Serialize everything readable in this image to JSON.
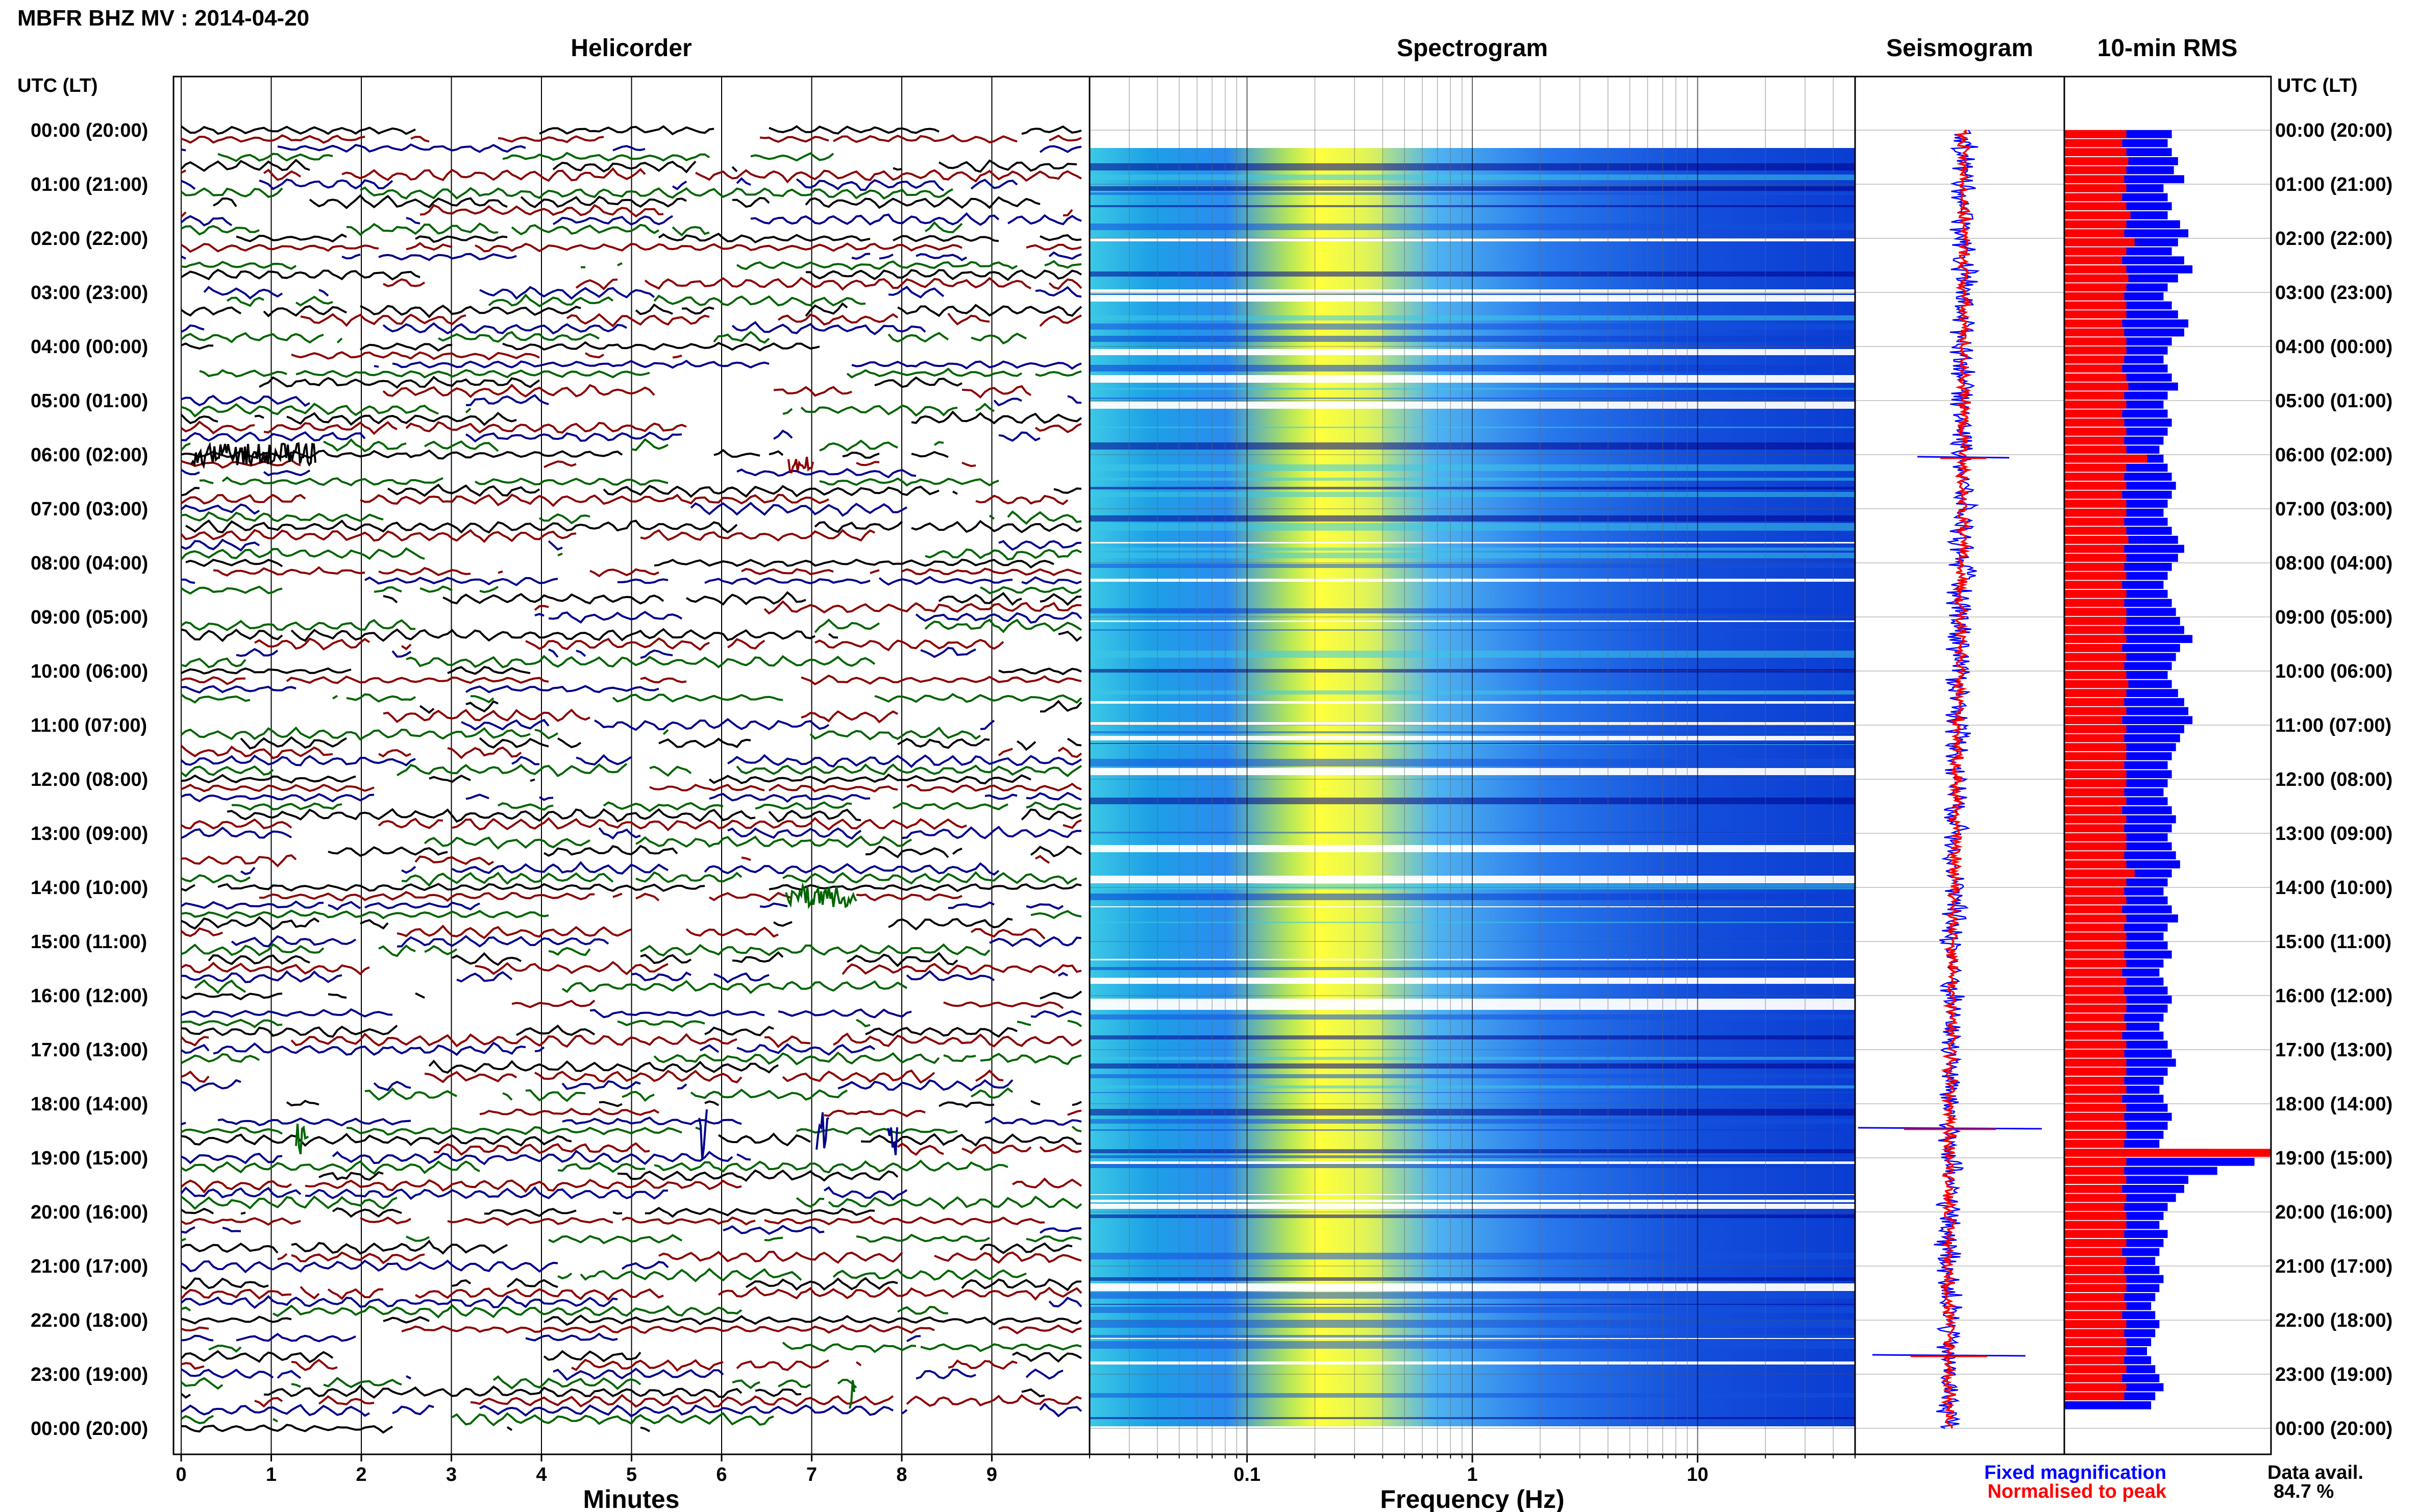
{
  "header": {
    "title": "MBFR BHZ MV : 2014-04-20",
    "utc_lt_label": "UTC (LT)"
  },
  "panels": {
    "helicorder": "Helicorder",
    "spectrogram": "Spectrogram",
    "seismogram": "Seismogram",
    "rms": "10-min RMS"
  },
  "legend": {
    "fixed": "Fixed magnification",
    "normalised": "Normalised to peak",
    "fixed_color": "#0000ff",
    "normalised_color": "#ff0000",
    "availability_label": "Data avail.",
    "availability_value": "84.7 %"
  },
  "colors": {
    "trace_cycle": [
      "#000000",
      "#8b0000",
      "#00008b",
      "#006400"
    ],
    "spectrogram_low": "#00008b",
    "spectrogram_high": "#ffff00"
  },
  "chart_data": [
    {
      "type": "line",
      "panel": "Helicorder",
      "xlabel": "Minutes",
      "xlim": [
        0,
        10
      ],
      "x_ticks": [
        0,
        1,
        2,
        3,
        4,
        5,
        6,
        7,
        8,
        9
      ],
      "rows_per_hour": 6,
      "y_hours_utc": [
        "00:00",
        "01:00",
        "02:00",
        "03:00",
        "04:00",
        "05:00",
        "06:00",
        "07:00",
        "08:00",
        "09:00",
        "10:00",
        "11:00",
        "12:00",
        "13:00",
        "14:00",
        "15:00",
        "16:00",
        "17:00",
        "18:00",
        "19:00",
        "20:00",
        "21:00",
        "22:00",
        "23:00",
        "00:00"
      ],
      "y_hours_lt": [
        "(20:00)",
        "(21:00)",
        "(22:00)",
        "(23:00)",
        "(00:00)",
        "(01:00)",
        "(02:00)",
        "(03:00)",
        "(04:00)",
        "(05:00)",
        "(06:00)",
        "(07:00)",
        "(08:00)",
        "(09:00)",
        "(10:00)",
        "(11:00)",
        "(12:00)",
        "(13:00)",
        "(14:00)",
        "(15:00)",
        "(16:00)",
        "(17:00)",
        "(18:00)",
        "(19:00)",
        "(20:00)"
      ]
    },
    {
      "type": "heatmap",
      "panel": "Spectrogram",
      "xlabel": "Frequency (Hz)",
      "x_scale": "log",
      "xlim": [
        0.02,
        50
      ],
      "x_ticks": [
        0.1,
        1,
        10
      ],
      "x_tick_labels": [
        "0.1",
        "1",
        "10"
      ],
      "peak_band_hz": [
        0.2,
        0.4
      ]
    },
    {
      "type": "line",
      "panel": "Seismogram",
      "series": [
        {
          "name": "Fixed magnification",
          "color": "#0000ff"
        },
        {
          "name": "Normalised to peak",
          "color": "#ff0000"
        }
      ]
    },
    {
      "type": "bar",
      "panel": "10-min RMS",
      "orientation": "horizontal",
      "series": [
        {
          "name": "Fixed magnification",
          "color": "#0000ff",
          "values": [
            0.52,
            0.5,
            0.52,
            0.55,
            0.53,
            0.58,
            0.48,
            0.5,
            0.52,
            0.5,
            0.56,
            0.6,
            0.55,
            0.52,
            0.58,
            0.62,
            0.55,
            0.5,
            0.48,
            0.52,
            0.55,
            0.6,
            0.58,
            0.52,
            0.5,
            0.48,
            0.5,
            0.52,
            0.55,
            0.5,
            0.48,
            0.5,
            0.52,
            0.5,
            0.48,
            0.46,
            0.48,
            0.5,
            0.52,
            0.54,
            0.52,
            0.5,
            0.48,
            0.5,
            0.52,
            0.55,
            0.58,
            0.55,
            0.52,
            0.5,
            0.48,
            0.5,
            0.52,
            0.54,
            0.56,
            0.58,
            0.62,
            0.56,
            0.54,
            0.52,
            0.5,
            0.52,
            0.55,
            0.58,
            0.6,
            0.62,
            0.58,
            0.56,
            0.54,
            0.52,
            0.5,
            0.52,
            0.5,
            0.48,
            0.5,
            0.52,
            0.54,
            0.52,
            0.5,
            0.52,
            0.54,
            0.56,
            0.52,
            0.5,
            0.48,
            0.5,
            0.52,
            0.55,
            0.5,
            0.48,
            0.5,
            0.52,
            0.48,
            0.46,
            0.48,
            0.5,
            0.52,
            0.5,
            0.48,
            0.46,
            0.48,
            0.5,
            0.52,
            0.54,
            0.5,
            0.48,
            0.46,
            0.48,
            0.5,
            0.52,
            0.5,
            0.48,
            0.46,
            0.7,
            0.92,
            0.74,
            0.6,
            0.58,
            0.54,
            0.5,
            0.48,
            0.46,
            0.5,
            0.48,
            0.46,
            0.44,
            0.46,
            0.48,
            0.46,
            0.44,
            0.42,
            0.44,
            0.46,
            0.44,
            0.42,
            0.4,
            0.42,
            0.44,
            0.46,
            0.48,
            0.44,
            0.42
          ]
        },
        {
          "name": "Normalised to peak",
          "color": "#ff0000",
          "values": [
            0.3,
            0.28,
            0.3,
            0.31,
            0.3,
            0.29,
            0.3,
            0.28,
            0.3,
            0.32,
            0.3,
            0.29,
            0.34,
            0.3,
            0.28,
            0.3,
            0.31,
            0.3,
            0.29,
            0.3,
            0.3,
            0.28,
            0.29,
            0.3,
            0.3,
            0.29,
            0.28,
            0.3,
            0.31,
            0.29,
            0.3,
            0.28,
            0.29,
            0.3,
            0.29,
            0.3,
            0.4,
            0.3,
            0.29,
            0.3,
            0.28,
            0.3,
            0.3,
            0.29,
            0.3,
            0.31,
            0.29,
            0.3,
            0.29,
            0.3,
            0.28,
            0.3,
            0.29,
            0.3,
            0.3,
            0.29,
            0.3,
            0.28,
            0.3,
            0.29,
            0.3,
            0.31,
            0.3,
            0.29,
            0.3,
            0.28,
            0.3,
            0.29,
            0.3,
            0.3,
            0.29,
            0.3,
            0.3,
            0.29,
            0.3,
            0.28,
            0.3,
            0.29,
            0.3,
            0.3,
            0.29,
            0.3,
            0.34,
            0.3,
            0.29,
            0.3,
            0.28,
            0.3,
            0.29,
            0.3,
            0.3,
            0.29,
            0.3,
            0.28,
            0.3,
            0.29,
            0.3,
            0.3,
            0.29,
            0.3,
            0.28,
            0.3,
            0.29,
            0.3,
            0.3,
            0.29,
            0.3,
            0.28,
            0.3,
            0.29,
            0.3,
            0.3,
            0.29,
            1.0,
            0.3,
            0.29,
            0.3,
            0.28,
            0.3,
            0.29,
            0.3,
            0.3,
            0.29,
            0.3,
            0.28,
            0.3,
            0.29,
            0.3,
            0.3,
            0.29,
            0.3,
            0.28,
            0.3,
            0.29,
            0.3,
            0.3,
            0.29,
            0.3,
            0.28,
            0.3,
            0.29
          ]
        }
      ]
    }
  ]
}
